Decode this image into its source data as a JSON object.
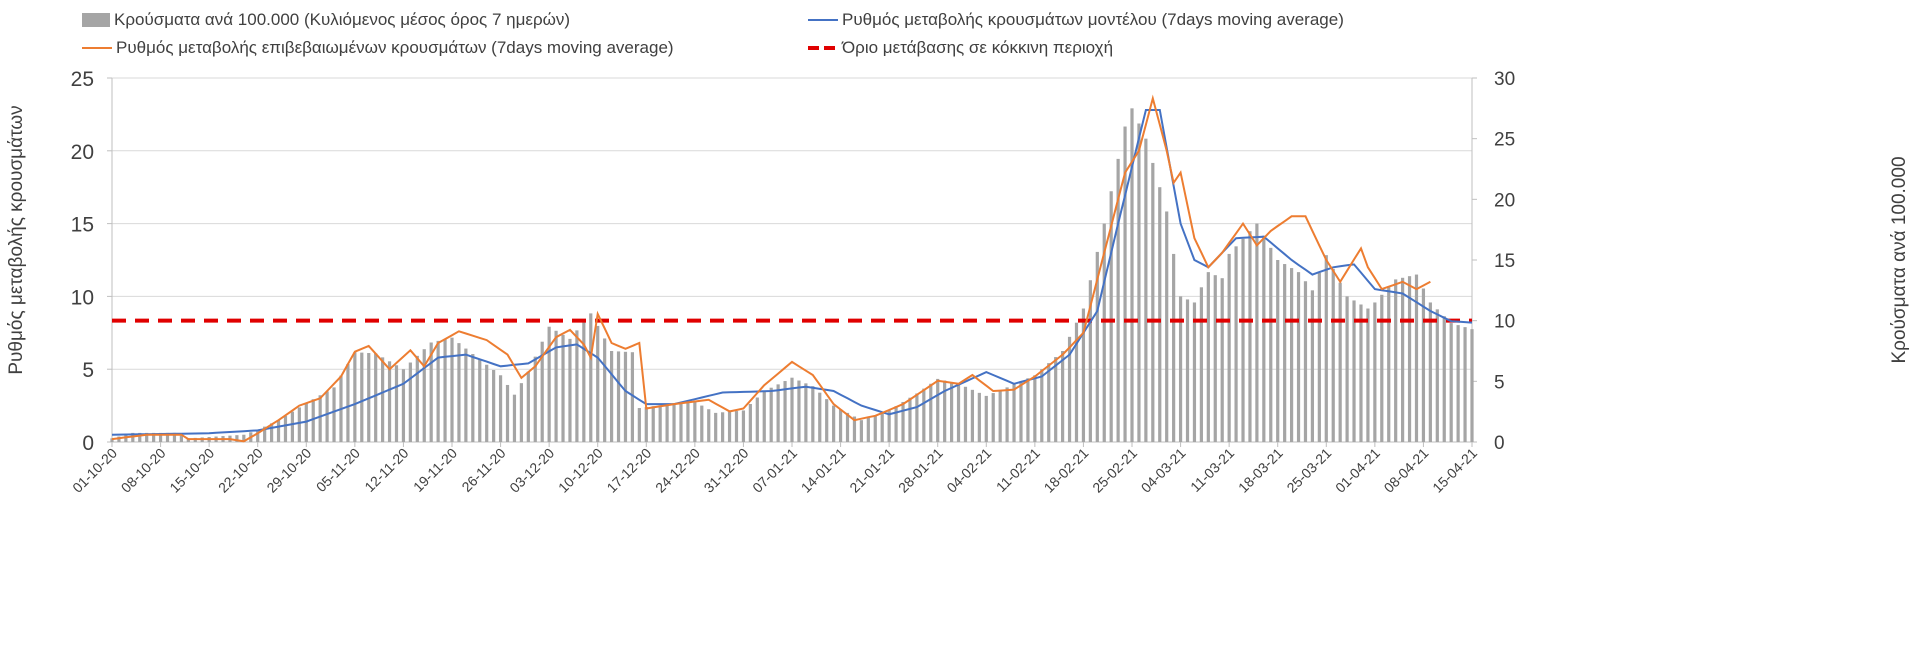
{
  "chart_data": {
    "type": "bar+line",
    "legend": [
      {
        "label": "Κρούσματα ανά 100.000 (Κυλιόμενος μέσος όρος 7 ημερών)",
        "color": "#a5a5a5",
        "kind": "bar"
      },
      {
        "label": "Ρυθμός μεταβολής κρουσμάτων μοντέλου (7days moving average)",
        "color": "#4472c4",
        "kind": "line"
      },
      {
        "label": "Ρυθμός μεταβολής επιβεβαιωμένων κρουσμάτων (7days moving average)",
        "color": "#ed7d31",
        "kind": "line"
      },
      {
        "label": "Όριο μετάβασης σε κόκκινη περιοχή",
        "color": "#e00000",
        "kind": "dashed"
      }
    ],
    "legend_placement": "top",
    "ylabel_left": "Ρυθμός μεταβολής κρουσμάτων",
    "ylabel_right": "Κρούσματα ανά 100.000",
    "ylim_left": [
      0,
      25
    ],
    "yticks_left": [
      "0",
      "5",
      "10",
      "15",
      "20",
      "25"
    ],
    "ylim_right": [
      0,
      30
    ],
    "yticks_right": [
      "0",
      "5",
      "10",
      "15",
      "20",
      "25",
      "30"
    ],
    "days": 197,
    "xticks": [
      "01-10-20",
      "08-10-20",
      "15-10-20",
      "22-10-20",
      "29-10-20",
      "05-11-20",
      "12-11-20",
      "19-11-20",
      "26-11-20",
      "03-12-20",
      "10-12-20",
      "17-12-20",
      "24-12-20",
      "31-12-20",
      "07-01-21",
      "14-01-21",
      "21-01-21",
      "28-01-21",
      "04-02-21",
      "11-02-21",
      "18-02-21",
      "25-02-21",
      "04-03-21",
      "11-03-21",
      "18-03-21",
      "25-03-21",
      "01-04-21",
      "08-04-21",
      "15-04-21"
    ],
    "threshold_right_axis": 10,
    "bars_right_axis_keyframes": [
      [
        0,
        0.3
      ],
      [
        3,
        0.75
      ],
      [
        9,
        0.75
      ],
      [
        11,
        0.3
      ],
      [
        19,
        0.6
      ],
      [
        21,
        1
      ],
      [
        24,
        1.8
      ],
      [
        28,
        3.2
      ],
      [
        32,
        4.5
      ],
      [
        35,
        7.4
      ],
      [
        38,
        7.3
      ],
      [
        42,
        6
      ],
      [
        46,
        8.2
      ],
      [
        49,
        8.6
      ],
      [
        53,
        6.8
      ],
      [
        56,
        5.5
      ],
      [
        58,
        3.9
      ],
      [
        60,
        5.8
      ],
      [
        63,
        9.5
      ],
      [
        66,
        8.5
      ],
      [
        69,
        10.6
      ],
      [
        72,
        7.5
      ],
      [
        75,
        7.4
      ],
      [
        76,
        2.8
      ],
      [
        80,
        3.1
      ],
      [
        84,
        3.3
      ],
      [
        87,
        2.4
      ],
      [
        91,
        2.6
      ],
      [
        94,
        4.2
      ],
      [
        98,
        5.3
      ],
      [
        101,
        4.6
      ],
      [
        104,
        3
      ],
      [
        108,
        1.8
      ],
      [
        112,
        2.6
      ],
      [
        116,
        4
      ],
      [
        119,
        5.2
      ],
      [
        122,
        4.8
      ],
      [
        126,
        3.8
      ],
      [
        129,
        4.5
      ],
      [
        133,
        5.5
      ],
      [
        137,
        7.5
      ],
      [
        140,
        11
      ],
      [
        143,
        18
      ],
      [
        146,
        26
      ],
      [
        147,
        27.5
      ],
      [
        149,
        25
      ],
      [
        152,
        19
      ],
      [
        154,
        12
      ],
      [
        156,
        11.5
      ],
      [
        158,
        14
      ],
      [
        160,
        13.5
      ],
      [
        161,
        15.5
      ],
      [
        165,
        18
      ],
      [
        168,
        15
      ],
      [
        171,
        14
      ],
      [
        173,
        12.5
      ],
      [
        175,
        15.4
      ],
      [
        178,
        12
      ],
      [
        181,
        11
      ],
      [
        182,
        11.5
      ],
      [
        185,
        13.4
      ],
      [
        188,
        13.8
      ],
      [
        190,
        11.5
      ],
      [
        193,
        9.8
      ],
      [
        196,
        9.3
      ]
    ],
    "model_keyframes": [
      [
        0,
        0.5
      ],
      [
        14,
        0.6
      ],
      [
        21,
        0.8
      ],
      [
        28,
        1.4
      ],
      [
        35,
        2.6
      ],
      [
        42,
        4
      ],
      [
        47,
        5.8
      ],
      [
        51,
        6
      ],
      [
        56,
        5.2
      ],
      [
        60,
        5.4
      ],
      [
        64,
        6.5
      ],
      [
        67,
        6.7
      ],
      [
        70,
        5.8
      ],
      [
        74,
        3.5
      ],
      [
        77,
        2.6
      ],
      [
        81,
        2.6
      ],
      [
        88,
        3.4
      ],
      [
        95,
        3.5
      ],
      [
        100,
        3.8
      ],
      [
        104,
        3.5
      ],
      [
        108,
        2.5
      ],
      [
        112,
        1.9
      ],
      [
        116,
        2.4
      ],
      [
        120,
        3.5
      ],
      [
        126,
        4.8
      ],
      [
        130,
        4
      ],
      [
        134,
        4.5
      ],
      [
        138,
        6
      ],
      [
        142,
        9
      ],
      [
        145,
        15
      ],
      [
        149,
        22.8
      ],
      [
        151,
        22.8
      ],
      [
        154,
        15
      ],
      [
        156,
        12.5
      ],
      [
        158,
        12
      ],
      [
        162,
        14
      ],
      [
        166,
        14.1
      ],
      [
        170,
        12.5
      ],
      [
        173,
        11.5
      ],
      [
        176,
        12
      ],
      [
        179,
        12.2
      ],
      [
        182,
        10.5
      ],
      [
        186,
        10.2
      ],
      [
        190,
        9
      ],
      [
        193,
        8.3
      ],
      [
        196,
        8.2
      ]
    ],
    "confirmed_keyframes": [
      [
        0,
        0.2
      ],
      [
        5,
        0.5
      ],
      [
        10,
        0.5
      ],
      [
        11,
        0.2
      ],
      [
        17,
        0.2
      ],
      [
        19,
        0.05
      ],
      [
        21,
        0.6
      ],
      [
        24,
        1.5
      ],
      [
        27,
        2.5
      ],
      [
        30,
        3
      ],
      [
        33,
        4.5
      ],
      [
        35,
        6.2
      ],
      [
        37,
        6.6
      ],
      [
        40,
        5
      ],
      [
        43,
        6.3
      ],
      [
        45,
        5.2
      ],
      [
        47,
        6.8
      ],
      [
        50,
        7.6
      ],
      [
        52,
        7.3
      ],
      [
        54,
        7
      ],
      [
        57,
        6
      ],
      [
        59,
        4.4
      ],
      [
        61,
        5.2
      ],
      [
        64,
        7.2
      ],
      [
        66,
        7.7
      ],
      [
        68,
        6.7
      ],
      [
        69,
        5.8
      ],
      [
        70,
        8.8
      ],
      [
        72,
        6.8
      ],
      [
        74,
        6.4
      ],
      [
        76,
        6.8
      ],
      [
        77,
        2.3
      ],
      [
        81,
        2.6
      ],
      [
        86,
        2.9
      ],
      [
        89,
        2.1
      ],
      [
        91,
        2.3
      ],
      [
        94,
        3.9
      ],
      [
        98,
        5.5
      ],
      [
        101,
        4.6
      ],
      [
        104,
        2.6
      ],
      [
        107,
        1.5
      ],
      [
        110,
        1.8
      ],
      [
        114,
        2.6
      ],
      [
        119,
        4.2
      ],
      [
        122,
        4
      ],
      [
        124,
        4.6
      ],
      [
        127,
        3.5
      ],
      [
        130,
        3.6
      ],
      [
        133,
        4.5
      ],
      [
        137,
        6
      ],
      [
        140,
        7.5
      ],
      [
        143,
        13
      ],
      [
        146,
        18.5
      ],
      [
        148,
        20
      ],
      [
        150,
        23.6
      ],
      [
        152,
        20
      ],
      [
        153,
        17.8
      ],
      [
        154,
        18.5
      ],
      [
        156,
        14
      ],
      [
        158,
        12
      ],
      [
        160,
        13
      ],
      [
        163,
        15
      ],
      [
        165,
        13.5
      ],
      [
        167,
        14.5
      ],
      [
        170,
        15.5
      ],
      [
        172,
        15.5
      ],
      [
        175,
        12.5
      ],
      [
        177,
        11
      ],
      [
        180,
        13.3
      ],
      [
        181,
        12
      ],
      [
        183,
        10.5
      ],
      [
        186,
        11
      ],
      [
        188,
        10.5
      ],
      [
        190,
        11
      ]
    ]
  }
}
